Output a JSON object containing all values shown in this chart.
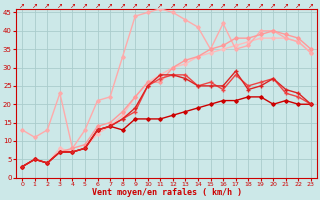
{
  "background_color": "#cce8e8",
  "grid_color": "#aacccc",
  "xlabel": "Vent moyen/en rafales ( km/h )",
  "xlabel_color": "#cc0000",
  "tick_color": "#cc0000",
  "xlim": [
    -0.5,
    23.5
  ],
  "ylim": [
    0,
    46
  ],
  "yticks": [
    0,
    5,
    10,
    15,
    20,
    25,
    30,
    35,
    40,
    45
  ],
  "xticks": [
    0,
    1,
    2,
    3,
    4,
    5,
    6,
    7,
    8,
    9,
    10,
    11,
    12,
    13,
    14,
    15,
    16,
    17,
    18,
    19,
    20,
    21,
    22,
    23
  ],
  "series": [
    {
      "x": [
        0,
        1,
        2,
        3,
        4,
        5,
        6,
        7,
        8,
        9,
        10,
        11,
        12,
        13,
        14,
        15,
        16,
        17,
        18,
        19,
        20,
        21,
        22,
        23
      ],
      "y": [
        3,
        5,
        4,
        7,
        7,
        8,
        13,
        14,
        13,
        16,
        16,
        16,
        17,
        18,
        19,
        20,
        21,
        21,
        22,
        22,
        20,
        21,
        20,
        20
      ],
      "color": "#cc0000",
      "marker": "D",
      "markersize": 1.8,
      "linewidth": 1.0,
      "zorder": 5
    },
    {
      "x": [
        0,
        1,
        2,
        3,
        4,
        5,
        6,
        7,
        8,
        9,
        10,
        11,
        12,
        13,
        14,
        15,
        16,
        17,
        18,
        19,
        20,
        21,
        22,
        23
      ],
      "y": [
        3,
        5,
        4,
        7,
        7,
        8,
        13,
        14,
        16,
        19,
        25,
        28,
        28,
        27,
        25,
        25,
        25,
        29,
        24,
        25,
        27,
        24,
        23,
        20
      ],
      "color": "#dd2222",
      "marker": "+",
      "markersize": 3.5,
      "linewidth": 1.0,
      "zorder": 5
    },
    {
      "x": [
        0,
        1,
        2,
        3,
        4,
        5,
        6,
        7,
        8,
        9,
        10,
        11,
        12,
        13,
        14,
        15,
        16,
        17,
        18,
        19,
        20,
        21,
        22,
        23
      ],
      "y": [
        3,
        5,
        4,
        7,
        7,
        8,
        13,
        14,
        16,
        18,
        25,
        27,
        28,
        28,
        25,
        26,
        24,
        28,
        25,
        26,
        27,
        23,
        22,
        20
      ],
      "color": "#ee4444",
      "marker": "+",
      "markersize": 3.5,
      "linewidth": 1.0,
      "zorder": 4
    },
    {
      "x": [
        0,
        1,
        2,
        3,
        4,
        5,
        6,
        7,
        8,
        9,
        10,
        11,
        12,
        13,
        14,
        15,
        16,
        17,
        18,
        19,
        20,
        21,
        22,
        23
      ],
      "y": [
        13,
        11,
        13,
        23,
        8,
        13,
        21,
        22,
        33,
        44,
        45,
        46,
        45,
        43,
        41,
        35,
        42,
        35,
        36,
        40,
        40,
        38,
        37,
        34
      ],
      "color": "#ffaaaa",
      "marker": "D",
      "markersize": 1.8,
      "linewidth": 1.0,
      "zorder": 3
    },
    {
      "x": [
        0,
        1,
        2,
        3,
        4,
        5,
        6,
        7,
        8,
        9,
        10,
        11,
        12,
        13,
        14,
        15,
        16,
        17,
        18,
        19,
        20,
        21,
        22,
        23
      ],
      "y": [
        3,
        5,
        4,
        7,
        8,
        9,
        14,
        15,
        18,
        22,
        26,
        26,
        30,
        32,
        33,
        35,
        36,
        38,
        38,
        39,
        40,
        39,
        38,
        35
      ],
      "color": "#ff9999",
      "marker": "D",
      "markersize": 1.8,
      "linewidth": 1.0,
      "zorder": 3
    },
    {
      "x": [
        0,
        1,
        2,
        3,
        4,
        5,
        6,
        7,
        8,
        9,
        10,
        11,
        12,
        13,
        14,
        15,
        16,
        17,
        18,
        19,
        20,
        21,
        22,
        23
      ],
      "y": [
        3,
        5,
        4,
        8,
        7,
        8,
        12,
        14,
        17,
        22,
        26,
        28,
        30,
        31,
        33,
        34,
        35,
        36,
        37,
        38,
        38,
        38,
        37,
        34
      ],
      "color": "#ffbbbb",
      "marker": "D",
      "markersize": 1.8,
      "linewidth": 1.0,
      "zorder": 2
    }
  ]
}
